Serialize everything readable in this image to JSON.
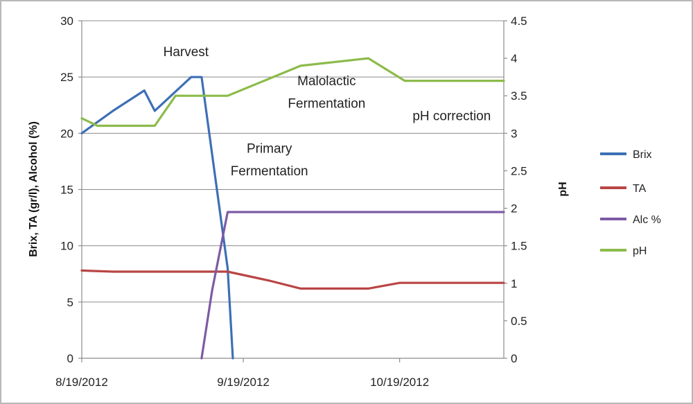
{
  "chart_data": {
    "type": "line",
    "title": "",
    "xlabel": "",
    "ylabel": "Brix, TA (gr/l), Alcohol (%)",
    "y2label": "pH",
    "xlim": [
      "2012-08-19",
      "2012-11-08"
    ],
    "ylim": [
      0,
      30
    ],
    "y2lim": [
      0,
      4.5
    ],
    "grid": true,
    "legend": "right",
    "x_ticks": [
      "8/19/2012",
      "9/19/2012",
      "10/19/2012"
    ],
    "x_tick_dates": [
      "2012-08-19",
      "2012-09-19",
      "2012-10-19"
    ],
    "y_ticks": [
      0,
      5,
      10,
      15,
      20,
      25,
      30
    ],
    "y2_ticks": [
      "0",
      "0.5",
      "1",
      "1.5",
      "2",
      "2.5",
      "3",
      "3.5",
      "4",
      "4.5"
    ],
    "series": [
      {
        "name": "Brix",
        "axis": "left",
        "color": "#3d6fb6",
        "points": [
          [
            "2012-08-19",
            20
          ],
          [
            "2012-08-25",
            22
          ],
          [
            "2012-08-31",
            23.8
          ],
          [
            "2012-09-02",
            22
          ],
          [
            "2012-09-09",
            25
          ],
          [
            "2012-09-11",
            25
          ],
          [
            "2012-09-16",
            8
          ],
          [
            "2012-09-17",
            0
          ]
        ]
      },
      {
        "name": "TA",
        "axis": "left",
        "color": "#b94545",
        "points": [
          [
            "2012-08-19",
            7.8
          ],
          [
            "2012-08-25",
            7.7
          ],
          [
            "2012-09-16",
            7.7
          ],
          [
            "2012-09-24",
            6.9
          ],
          [
            "2012-09-30",
            6.2
          ],
          [
            "2012-10-13",
            6.2
          ],
          [
            "2012-10-19",
            6.7
          ],
          [
            "2012-11-08",
            6.7
          ]
        ]
      },
      {
        "name": "Alc %",
        "axis": "left",
        "color": "#7d5aa5",
        "points": [
          [
            "2012-09-11",
            0
          ],
          [
            "2012-09-13",
            6
          ],
          [
            "2012-09-16",
            13
          ],
          [
            "2012-11-08",
            13
          ]
        ]
      },
      {
        "name": "pH",
        "axis": "right",
        "color": "#8cbb4b",
        "points": [
          [
            "2012-08-19",
            3.2
          ],
          [
            "2012-08-22",
            3.1
          ],
          [
            "2012-08-26",
            3.1
          ],
          [
            "2012-09-02",
            3.1
          ],
          [
            "2012-09-06",
            3.5
          ],
          [
            "2012-09-16",
            3.5
          ],
          [
            "2012-09-30",
            3.9
          ],
          [
            "2012-10-13",
            4.0
          ],
          [
            "2012-10-20",
            3.7
          ],
          [
            "2012-11-08",
            3.7
          ]
        ]
      }
    ],
    "annotations": [
      {
        "text": "Harvest",
        "date": "2012-09-08",
        "y": 27.3
      },
      {
        "text": "Malolactic",
        "date": "2012-10-05",
        "y": 24.7
      },
      {
        "text": "Fermentation",
        "date": "2012-10-05",
        "y": 22.7
      },
      {
        "text": "pH correction",
        "date": "2012-10-29",
        "y": 21.6
      },
      {
        "text": "Primary",
        "date": "2012-09-24",
        "y": 18.7
      },
      {
        "text": "Fermentation",
        "date": "2012-09-24",
        "y": 16.7
      }
    ]
  }
}
